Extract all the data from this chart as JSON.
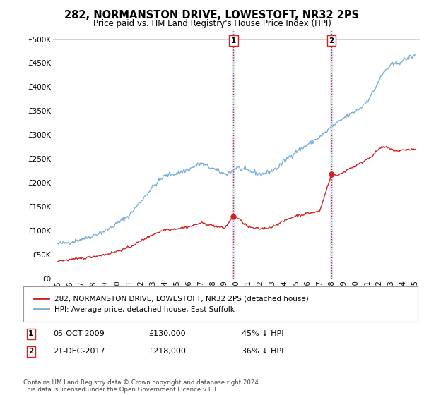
{
  "title": "282, NORMANSTON DRIVE, LOWESTOFT, NR32 2PS",
  "subtitle": "Price paid vs. HM Land Registry's House Price Index (HPI)",
  "yticks": [
    0,
    50000,
    100000,
    150000,
    200000,
    250000,
    300000,
    350000,
    400000,
    450000,
    500000
  ],
  "ytick_labels": [
    "£0",
    "£50K",
    "£100K",
    "£150K",
    "£200K",
    "£250K",
    "£300K",
    "£350K",
    "£400K",
    "£450K",
    "£500K"
  ],
  "ylim": [
    0,
    520000
  ],
  "xlim_start": 1994.6,
  "xlim_end": 2025.4,
  "hpi_color": "#7aafd4",
  "price_color": "#cc2222",
  "vline_color": "#cc2222",
  "shaded_color": "#ddeeff",
  "marker1_year": 2009.75,
  "marker1_price": 130000,
  "marker2_year": 2017.97,
  "marker2_price": 218000,
  "legend_label_price": "282, NORMANSTON DRIVE, LOWESTOFT, NR32 2PS (detached house)",
  "legend_label_hpi": "HPI: Average price, detached house, East Suffolk",
  "table_row1": [
    "1",
    "05-OCT-2009",
    "£130,000",
    "45% ↓ HPI"
  ],
  "table_row2": [
    "2",
    "21-DEC-2017",
    "£218,000",
    "36% ↓ HPI"
  ],
  "footnote": "Contains HM Land Registry data © Crown copyright and database right 2024.\nThis data is licensed under the Open Government Licence v3.0.",
  "background_color": "#ffffff",
  "grid_color": "#cccccc",
  "xtick_years": [
    1995,
    1996,
    1997,
    1998,
    1999,
    2000,
    2001,
    2002,
    2003,
    2004,
    2005,
    2006,
    2007,
    2008,
    2009,
    2010,
    2011,
    2012,
    2013,
    2014,
    2015,
    2016,
    2017,
    2018,
    2019,
    2020,
    2021,
    2022,
    2023,
    2024,
    2025
  ],
  "hpi_anchors": [
    [
      1995.0,
      72000
    ],
    [
      1996.0,
      76000
    ],
    [
      1997.0,
      82000
    ],
    [
      1998.0,
      90000
    ],
    [
      1999.0,
      100000
    ],
    [
      2000.0,
      115000
    ],
    [
      2001.0,
      132000
    ],
    [
      2002.0,
      162000
    ],
    [
      2003.0,
      192000
    ],
    [
      2004.0,
      215000
    ],
    [
      2005.0,
      220000
    ],
    [
      2006.0,
      228000
    ],
    [
      2007.0,
      240000
    ],
    [
      2008.0,
      230000
    ],
    [
      2009.0,
      218000
    ],
    [
      2009.5,
      222000
    ],
    [
      2010.0,
      232000
    ],
    [
      2010.5,
      228000
    ],
    [
      2011.0,
      225000
    ],
    [
      2011.5,
      222000
    ],
    [
      2012.0,
      218000
    ],
    [
      2012.5,
      220000
    ],
    [
      2013.0,
      225000
    ],
    [
      2013.5,
      232000
    ],
    [
      2014.0,
      245000
    ],
    [
      2014.5,
      255000
    ],
    [
      2015.0,
      265000
    ],
    [
      2015.5,
      272000
    ],
    [
      2016.0,
      280000
    ],
    [
      2016.5,
      288000
    ],
    [
      2017.0,
      295000
    ],
    [
      2017.5,
      305000
    ],
    [
      2018.0,
      318000
    ],
    [
      2018.5,
      325000
    ],
    [
      2019.0,
      335000
    ],
    [
      2019.5,
      342000
    ],
    [
      2020.0,
      350000
    ],
    [
      2020.5,
      358000
    ],
    [
      2021.0,
      372000
    ],
    [
      2021.5,
      390000
    ],
    [
      2022.0,
      415000
    ],
    [
      2022.5,
      435000
    ],
    [
      2023.0,
      445000
    ],
    [
      2023.5,
      450000
    ],
    [
      2024.0,
      455000
    ],
    [
      2024.5,
      462000
    ],
    [
      2025.0,
      465000
    ]
  ],
  "price_anchors": [
    [
      1995.0,
      37000
    ],
    [
      1996.0,
      39000
    ],
    [
      1997.0,
      42000
    ],
    [
      1998.0,
      46000
    ],
    [
      1999.0,
      50000
    ],
    [
      2000.0,
      57000
    ],
    [
      2001.0,
      65000
    ],
    [
      2002.0,
      79000
    ],
    [
      2003.0,
      92000
    ],
    [
      2004.0,
      102000
    ],
    [
      2005.0,
      104000
    ],
    [
      2006.0,
      108000
    ],
    [
      2007.0,
      116000
    ],
    [
      2008.0,
      111000
    ],
    [
      2009.0,
      105000
    ],
    [
      2009.75,
      130000
    ],
    [
      2010.0,
      128000
    ],
    [
      2010.5,
      118000
    ],
    [
      2011.0,
      108000
    ],
    [
      2011.5,
      105000
    ],
    [
      2012.0,
      104000
    ],
    [
      2012.5,
      105000
    ],
    [
      2013.0,
      108000
    ],
    [
      2013.5,
      114000
    ],
    [
      2014.0,
      120000
    ],
    [
      2014.5,
      126000
    ],
    [
      2015.0,
      131000
    ],
    [
      2015.5,
      133000
    ],
    [
      2016.0,
      136000
    ],
    [
      2016.5,
      138000
    ],
    [
      2017.0,
      140000
    ],
    [
      2017.97,
      218000
    ],
    [
      2018.0,
      218000
    ],
    [
      2018.5,
      215000
    ],
    [
      2019.0,
      222000
    ],
    [
      2019.5,
      230000
    ],
    [
      2020.0,
      235000
    ],
    [
      2020.5,
      242000
    ],
    [
      2021.0,
      250000
    ],
    [
      2021.5,
      258000
    ],
    [
      2022.0,
      272000
    ],
    [
      2022.5,
      275000
    ],
    [
      2023.0,
      270000
    ],
    [
      2023.5,
      266000
    ],
    [
      2024.0,
      268000
    ],
    [
      2024.5,
      270000
    ],
    [
      2025.0,
      270000
    ]
  ]
}
